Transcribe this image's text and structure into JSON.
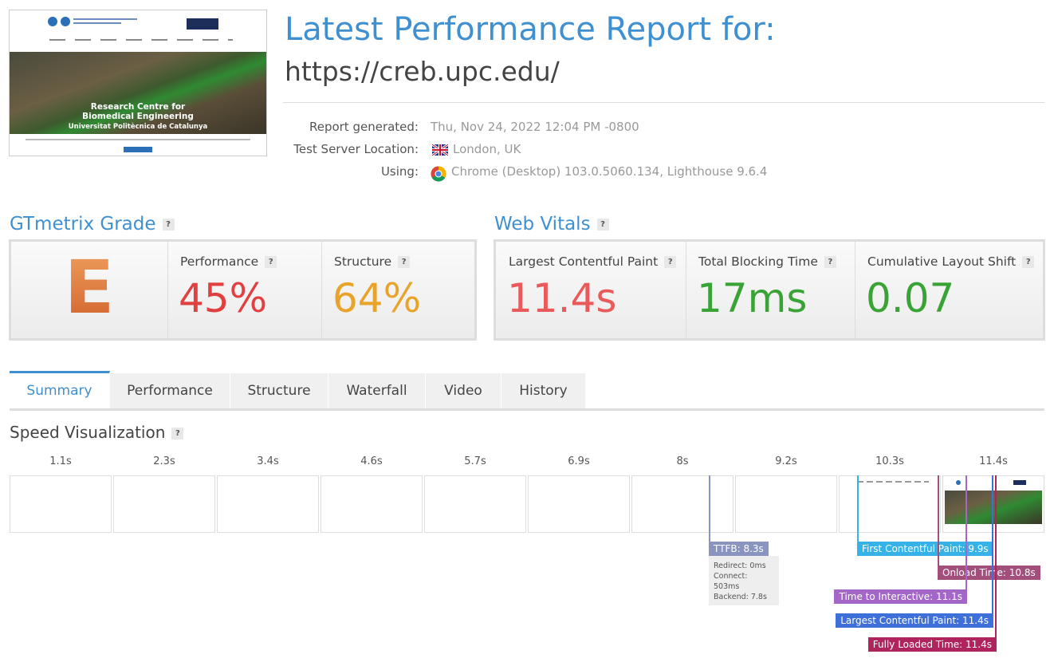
{
  "header": {
    "title": "Latest Performance Report for:",
    "url": "https://creb.upc.edu/"
  },
  "thumbnail": {
    "hero_title": "Research Centre for Biomedical Engineering",
    "hero_subtitle": "Universitat Politècnica de Catalunya"
  },
  "report": {
    "rows": [
      {
        "label": "Report generated:",
        "value": "Thu, Nov 24, 2022 12:04 PM -0800"
      },
      {
        "label": "Test Server Location:",
        "value": "London, UK"
      },
      {
        "label": "Using:",
        "value": "Chrome (Desktop) 103.0.5060.134, Lighthouse 9.6.4"
      }
    ]
  },
  "help_icon": "?",
  "grade": {
    "title": "GTmetrix Grade",
    "letter": "E",
    "metrics": [
      {
        "label": "Performance",
        "value": "45%"
      },
      {
        "label": "Structure",
        "value": "64%"
      }
    ]
  },
  "vitals": {
    "title": "Web Vitals",
    "metrics": [
      {
        "label": "Largest Contentful Paint",
        "value": "11.4s"
      },
      {
        "label": "Total Blocking Time",
        "value": "17ms"
      },
      {
        "label": "Cumulative Layout Shift",
        "value": "0.07"
      }
    ]
  },
  "tabs": [
    "Summary",
    "Performance",
    "Structure",
    "Waterfall",
    "Video",
    "History"
  ],
  "speed": {
    "title": "Speed Visualization",
    "frames": [
      "1.1s",
      "2.3s",
      "3.4s",
      "4.6s",
      "5.7s",
      "6.9s",
      "8s",
      "9.2s",
      "10.3s",
      "11.4s"
    ],
    "markers": [
      {
        "label": "TTFB: 8.3s",
        "details": [
          "Redirect: 0ms",
          "Connect: 503ms",
          "Backend: 7.8s"
        ]
      },
      {
        "label": "First Contentful Paint: 9.9s"
      },
      {
        "label": "Onload Time: 10.8s"
      },
      {
        "label": "Time to Interactive: 11.1s"
      },
      {
        "label": "Largest Contentful Paint: 11.4s"
      },
      {
        "label": "Fully Loaded Time: 11.4s"
      }
    ]
  }
}
